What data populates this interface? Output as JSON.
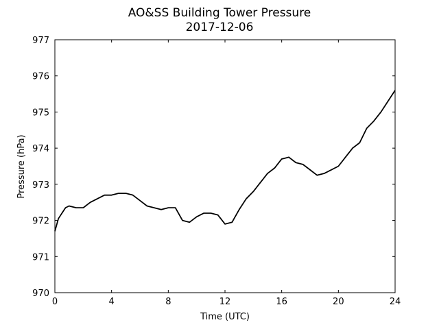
{
  "chart_data": {
    "type": "line",
    "title": "AO&SS Building Tower Pressure",
    "subtitle": "2017-12-06",
    "xlabel": "Time (UTC)",
    "ylabel": "Pressure (hPa)",
    "xlim": [
      0,
      24
    ],
    "ylim": [
      970,
      977
    ],
    "xticks": [
      0,
      4,
      8,
      12,
      16,
      20,
      24
    ],
    "yticks": [
      970,
      971,
      972,
      973,
      974,
      975,
      976,
      977
    ],
    "grid": false,
    "line_color": "#000000",
    "series": [
      {
        "x": [
          0,
          0.25,
          0.5,
          0.75,
          1,
          1.5,
          2,
          2.5,
          3,
          3.5,
          4,
          4.5,
          5,
          5.5,
          6,
          6.5,
          7,
          7.5,
          8,
          8.5,
          9,
          9.5,
          10,
          10.5,
          11,
          11.5,
          12,
          12.5,
          13,
          13.5,
          14,
          14.5,
          15,
          15.5,
          16,
          16.5,
          17,
          17.5,
          18,
          18.5,
          19,
          19.5,
          20,
          20.5,
          21,
          21.5,
          22,
          22.5,
          23,
          23.5,
          24
        ],
        "y": [
          971.7,
          972.05,
          972.2,
          972.35,
          972.4,
          972.35,
          972.35,
          972.5,
          972.6,
          972.7,
          972.7,
          972.75,
          972.75,
          972.7,
          972.55,
          972.4,
          972.35,
          972.3,
          972.35,
          972.35,
          972.0,
          971.95,
          972.1,
          972.2,
          972.2,
          972.15,
          971.9,
          971.95,
          972.3,
          972.6,
          972.8,
          973.05,
          973.3,
          973.45,
          973.7,
          973.75,
          973.6,
          973.55,
          973.4,
          973.25,
          973.3,
          973.4,
          973.5,
          973.75,
          974.0,
          974.15,
          974.55,
          974.75,
          975.0,
          975.3,
          975.6
        ]
      }
    ]
  }
}
